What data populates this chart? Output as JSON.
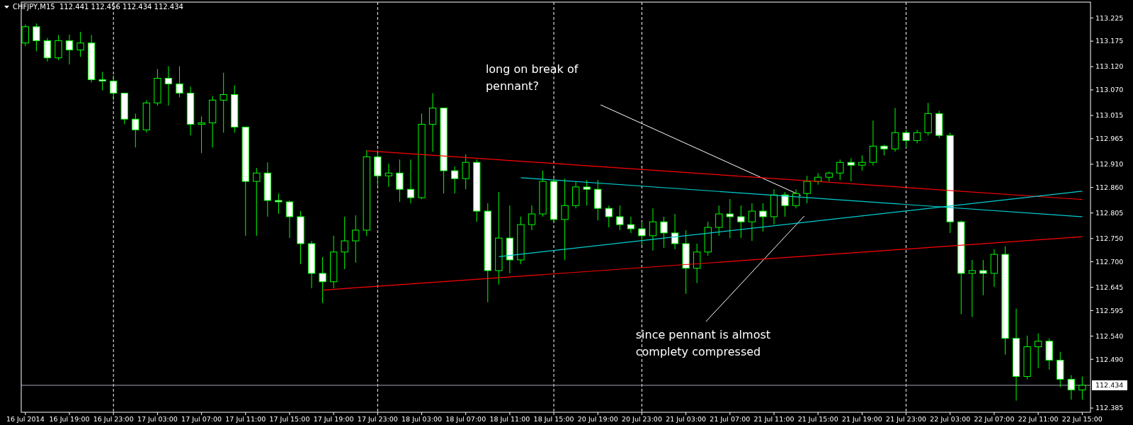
{
  "chart_data": {
    "type": "candlestick",
    "title": "CHFJPY,M15  112.441 112.456 112.434 112.434",
    "color": "#00ff00",
    "categories": [
      "16 Jul 2014",
      null,
      null,
      null,
      "16 Jul 19:00",
      null,
      null,
      null,
      "16 Jul 23:00",
      null,
      null,
      null,
      "17 Jul 03:00",
      null,
      null,
      null,
      "17 Jul 07:00",
      null,
      null,
      null,
      "17 Jul 11:00",
      null,
      null,
      null,
      "17 Jul 15:00",
      null,
      null,
      null,
      "17 Jul 19:00",
      null,
      null,
      null,
      "17 Jul 23:00",
      null,
      null,
      null,
      "18 Jul 03:00",
      null,
      null,
      null,
      "18 Jul 07:00",
      null,
      null,
      null,
      "18 Jul 11:00",
      null,
      null,
      null,
      "18 Jul 15:00",
      null,
      null,
      null,
      "20 Jul 19:00",
      null,
      null,
      null,
      "20 Jul 23:00",
      null,
      null,
      null,
      "21 Jul 03:00",
      null,
      null,
      null,
      "21 Jul 07:00",
      null,
      null,
      null,
      "21 Jul 11:00",
      null,
      null,
      null,
      "21 Jul 15:00",
      null,
      null,
      null,
      "21 Jul 19:00",
      null,
      null,
      null,
      "21 Jul 23:00",
      null,
      null,
      null,
      "22 Jul 03:00",
      null,
      null,
      null,
      "22 Jul 07:00",
      null,
      null,
      null,
      "22 Jul 11:00",
      null,
      null,
      null,
      "22 Jul 15:00"
    ],
    "ohlc": [
      [
        113.171,
        113.211,
        113.164,
        113.206
      ],
      [
        113.206,
        113.213,
        113.153,
        113.176
      ],
      [
        113.176,
        113.182,
        113.131,
        113.139
      ],
      [
        113.139,
        113.188,
        113.134,
        113.176
      ],
      [
        113.176,
        113.189,
        113.125,
        113.156
      ],
      [
        113.156,
        113.195,
        113.141,
        113.171
      ],
      [
        113.171,
        113.188,
        113.086,
        113.092
      ],
      [
        113.092,
        113.109,
        113.069,
        113.089
      ],
      [
        113.089,
        113.101,
        113.048,
        113.063
      ],
      [
        113.063,
        113.063,
        112.996,
        113.007
      ],
      [
        113.007,
        113.019,
        112.946,
        112.984
      ],
      [
        112.984,
        113.048,
        112.978,
        113.042
      ],
      [
        113.042,
        113.115,
        113.036,
        113.095
      ],
      [
        113.095,
        113.121,
        113.036,
        113.083
      ],
      [
        113.083,
        113.121,
        113.054,
        113.063
      ],
      [
        113.063,
        113.077,
        112.972,
        112.996
      ],
      [
        112.996,
        113.013,
        112.934,
        112.999
      ],
      [
        112.999,
        113.057,
        112.946,
        113.048
      ],
      [
        113.048,
        113.107,
        112.978,
        113.06
      ],
      [
        113.06,
        113.08,
        112.978,
        112.99
      ],
      [
        112.99,
        112.99,
        112.756,
        112.873
      ],
      [
        112.873,
        112.902,
        112.756,
        112.891
      ],
      [
        112.891,
        112.914,
        112.797,
        112.832
      ],
      [
        112.832,
        112.847,
        112.803,
        112.829
      ],
      [
        112.829,
        112.832,
        112.751,
        112.797
      ],
      [
        112.797,
        112.809,
        112.695,
        112.739
      ],
      [
        112.739,
        112.745,
        112.643,
        112.675
      ],
      [
        112.675,
        112.71,
        112.611,
        112.657
      ],
      [
        112.657,
        112.756,
        112.643,
        112.721
      ],
      [
        112.721,
        112.797,
        112.684,
        112.745
      ],
      [
        112.745,
        112.8,
        112.698,
        112.768
      ],
      [
        112.768,
        112.94,
        112.756,
        112.926
      ],
      [
        112.926,
        112.94,
        112.864,
        112.885
      ],
      [
        112.885,
        112.911,
        112.861,
        112.891
      ],
      [
        112.891,
        112.92,
        112.829,
        112.856
      ],
      [
        112.856,
        112.92,
        112.826,
        112.838
      ],
      [
        112.838,
        113.019,
        112.835,
        112.996
      ],
      [
        112.996,
        113.063,
        112.937,
        113.031
      ],
      [
        113.031,
        113.031,
        112.847,
        112.896
      ],
      [
        112.896,
        112.905,
        112.847,
        112.879
      ],
      [
        112.879,
        112.931,
        112.856,
        112.914
      ],
      [
        112.914,
        112.92,
        112.786,
        112.809
      ],
      [
        112.809,
        112.826,
        112.613,
        112.681
      ],
      [
        112.681,
        112.85,
        112.651,
        112.751
      ],
      [
        112.751,
        112.821,
        112.675,
        112.704
      ],
      [
        112.704,
        112.797,
        112.695,
        112.78
      ],
      [
        112.78,
        112.821,
        112.768,
        112.803
      ],
      [
        112.803,
        112.896,
        112.797,
        112.873
      ],
      [
        112.873,
        112.879,
        112.786,
        112.791
      ],
      [
        112.791,
        112.879,
        112.704,
        112.821
      ],
      [
        112.821,
        112.873,
        112.815,
        112.861
      ],
      [
        112.861,
        112.876,
        112.821,
        112.856
      ],
      [
        112.856,
        112.876,
        112.789,
        112.815
      ],
      [
        112.815,
        112.821,
        112.774,
        112.797
      ],
      [
        112.797,
        112.821,
        112.768,
        112.78
      ],
      [
        112.78,
        112.797,
        112.762,
        112.771
      ],
      [
        112.771,
        112.786,
        112.736,
        112.756
      ],
      [
        112.756,
        112.815,
        112.724,
        112.786
      ],
      [
        112.786,
        112.797,
        112.73,
        112.762
      ],
      [
        112.762,
        112.803,
        112.727,
        112.739
      ],
      [
        112.739,
        112.768,
        112.631,
        112.686
      ],
      [
        112.686,
        112.739,
        112.654,
        112.721
      ],
      [
        112.721,
        112.786,
        112.713,
        112.774
      ],
      [
        112.774,
        112.821,
        112.756,
        112.803
      ],
      [
        112.803,
        112.835,
        112.751,
        112.797
      ],
      [
        112.797,
        112.821,
        112.751,
        112.786
      ],
      [
        112.786,
        112.826,
        112.745,
        112.809
      ],
      [
        112.809,
        112.826,
        112.765,
        112.797
      ],
      [
        112.797,
        112.856,
        112.78,
        112.844
      ],
      [
        112.844,
        112.85,
        112.797,
        112.821
      ],
      [
        112.821,
        112.856,
        112.815,
        112.847
      ],
      [
        112.847,
        112.885,
        112.826,
        112.873
      ],
      [
        112.873,
        112.891,
        112.866,
        112.882
      ],
      [
        112.882,
        112.894,
        112.873,
        112.891
      ],
      [
        112.891,
        112.92,
        112.876,
        112.914
      ],
      [
        112.914,
        112.923,
        112.873,
        112.908
      ],
      [
        112.908,
        112.929,
        112.896,
        112.914
      ],
      [
        112.914,
        113.004,
        112.907,
        112.949
      ],
      [
        112.949,
        112.952,
        112.929,
        112.943
      ],
      [
        112.943,
        113.031,
        112.937,
        112.978
      ],
      [
        112.978,
        112.984,
        112.946,
        112.961
      ],
      [
        112.961,
        112.984,
        112.955,
        112.978
      ],
      [
        112.978,
        113.042,
        112.972,
        113.019
      ],
      [
        113.019,
        113.025,
        112.966,
        112.972
      ],
      [
        112.972,
        112.978,
        112.762,
        112.786
      ],
      [
        112.786,
        112.789,
        112.587,
        112.675
      ],
      [
        112.675,
        112.704,
        112.581,
        112.681
      ],
      [
        112.681,
        112.704,
        112.628,
        112.675
      ],
      [
        112.675,
        112.727,
        112.646,
        112.716
      ],
      [
        112.716,
        112.733,
        112.5,
        112.535
      ],
      [
        112.535,
        112.599,
        112.401,
        112.453
      ],
      [
        112.453,
        112.541,
        112.447,
        112.517
      ],
      [
        112.517,
        112.546,
        112.471,
        112.529
      ],
      [
        112.529,
        112.535,
        112.468,
        112.488
      ],
      [
        112.488,
        112.506,
        112.43,
        112.447
      ],
      [
        112.447,
        112.456,
        112.403,
        112.424
      ],
      [
        112.424,
        112.453,
        112.403,
        112.434
      ]
    ],
    "series": [
      {
        "type": "line",
        "color": "#ff0000",
        "values": [
          null,
          null,
          null,
          null,
          null,
          null,
          null,
          null,
          null,
          null,
          null,
          null,
          null,
          null,
          null,
          null,
          null,
          null,
          null,
          null,
          null,
          null,
          null,
          null,
          null,
          null,
          null,
          null,
          null,
          null,
          null,
          112.939,
          null,
          null,
          null,
          null,
          null,
          null,
          null,
          null,
          null,
          null,
          null,
          null,
          null,
          null,
          null,
          null,
          null,
          null,
          null,
          null,
          null,
          null,
          null,
          null,
          null,
          null,
          null,
          null,
          null,
          null,
          null,
          null,
          null,
          null,
          null,
          null,
          null,
          null,
          null,
          null,
          null,
          null,
          null,
          null,
          null,
          null,
          null,
          null,
          null,
          null,
          null,
          null,
          null,
          null,
          null,
          null,
          null,
          null,
          null,
          null,
          null,
          null,
          null,
          null,
          112.834
        ]
      },
      {
        "type": "line",
        "color": "#ff0000",
        "values": [
          null,
          null,
          null,
          null,
          null,
          null,
          null,
          null,
          null,
          null,
          null,
          null,
          null,
          null,
          null,
          null,
          null,
          null,
          null,
          null,
          null,
          null,
          null,
          null,
          null,
          null,
          null,
          112.639,
          null,
          null,
          null,
          null,
          null,
          null,
          null,
          null,
          null,
          null,
          null,
          null,
          null,
          null,
          null,
          null,
          null,
          null,
          null,
          null,
          null,
          null,
          null,
          null,
          null,
          null,
          null,
          null,
          null,
          null,
          null,
          null,
          null,
          null,
          null,
          null,
          null,
          null,
          null,
          null,
          null,
          null,
          null,
          null,
          null,
          null,
          null,
          null,
          null,
          null,
          null,
          null,
          null,
          null,
          null,
          null,
          null,
          null,
          null,
          null,
          null,
          null,
          null,
          null,
          null,
          null,
          null,
          null,
          112.754
        ]
      },
      {
        "type": "line",
        "color": "#00ced1",
        "values": [
          null,
          null,
          null,
          null,
          null,
          null,
          null,
          null,
          null,
          null,
          null,
          null,
          null,
          null,
          null,
          null,
          null,
          null,
          null,
          null,
          null,
          null,
          null,
          null,
          null,
          null,
          null,
          null,
          null,
          null,
          null,
          null,
          null,
          null,
          null,
          null,
          null,
          null,
          null,
          null,
          null,
          null,
          null,
          null,
          null,
          112.881,
          null,
          null,
          null,
          null,
          null,
          null,
          null,
          null,
          null,
          null,
          null,
          null,
          null,
          null,
          null,
          null,
          null,
          null,
          null,
          null,
          null,
          null,
          null,
          null,
          null,
          null,
          null,
          null,
          null,
          null,
          null,
          null,
          null,
          null,
          null,
          null,
          null,
          null,
          null,
          null,
          null,
          null,
          null,
          null,
          null,
          null,
          null,
          null,
          null,
          null,
          112.797
        ]
      },
      {
        "type": "line",
        "color": "#00ced1",
        "values": [
          null,
          null,
          null,
          null,
          null,
          null,
          null,
          null,
          null,
          null,
          null,
          null,
          null,
          null,
          null,
          null,
          null,
          null,
          null,
          null,
          null,
          null,
          null,
          null,
          null,
          null,
          null,
          null,
          null,
          null,
          null,
          null,
          null,
          null,
          null,
          null,
          null,
          null,
          null,
          null,
          null,
          null,
          null,
          112.711,
          null,
          null,
          null,
          null,
          null,
          null,
          null,
          null,
          null,
          null,
          null,
          null,
          null,
          null,
          null,
          null,
          null,
          null,
          null,
          null,
          null,
          null,
          null,
          null,
          null,
          null,
          null,
          null,
          null,
          null,
          null,
          null,
          null,
          null,
          null,
          null,
          null,
          null,
          null,
          null,
          null,
          null,
          null,
          null,
          null,
          null,
          null,
          null,
          null,
          null,
          null,
          null,
          112.852
        ]
      }
    ],
    "ylim": [
      112.376,
      113.259
    ],
    "yticks": [
      113.225,
      113.175,
      {
        "value": 113.12,
        "label": "113.120"
      },
      {
        "value": 113.07,
        "label": "113.070"
      },
      113.015,
      112.965,
      {
        "value": 112.91,
        "label": "112.910"
      },
      {
        "value": 112.86,
        "label": "112.860"
      },
      112.805,
      {
        "value": 112.75,
        "label": "112.750"
      },
      {
        "value": 112.7,
        "label": "112.700"
      },
      112.645,
      112.595,
      {
        "value": 112.54,
        "label": "112.540"
      },
      {
        "value": 112.49,
        "label": "112.490"
      },
      112.385
    ],
    "ref_lines": [
      {
        "axis": "x",
        "value": "16 Jul 23:00",
        "color": "#ffffff",
        "line_style": "dashed"
      },
      {
        "axis": "x",
        "value": "17 Jul 23:00",
        "color": "#ffffff",
        "line_style": "dashed"
      },
      {
        "axis": "x",
        "value": "18 Jul 15:00",
        "color": "#ffffff",
        "line_style": "dashed"
      },
      {
        "axis": "x",
        "value": "20 Jul 23:00",
        "color": "#ffffff",
        "line_style": "dashed"
      },
      {
        "axis": "x",
        "value": "21 Jul 23:00",
        "color": "#ffffff",
        "line_style": "dashed"
      },
      {
        "axis": "y",
        "value": 112.434,
        "label": "112.434",
        "color": "#a0a8b8",
        "line_style": "solid"
      }
    ],
    "annotations": [
      "long on break of pennant?",
      "since pennant is almost complety compressed"
    ],
    "grid": false
  }
}
